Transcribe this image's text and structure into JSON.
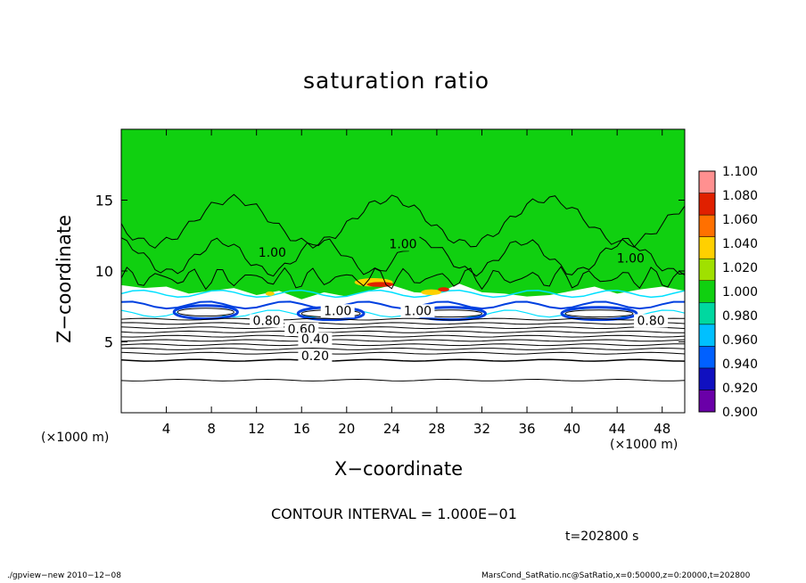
{
  "header": {
    "title": "saturation ratio"
  },
  "axes": {
    "xlabel": "X−coordinate",
    "ylabel": "Z−coordinate",
    "x_unit_left": "(×1000 m)",
    "x_unit_right": "(×1000 m)"
  },
  "info": {
    "contour_interval": "CONTOUR INTERVAL = 1.000E−01",
    "time": "t=202800 s"
  },
  "footer": {
    "left": "./gpview−new   2010−12−08",
    "right": "MarsCond_SatRatio.nc@SatRatio,x=0:50000,z=0:20000,t=202800"
  },
  "colors": {
    "saturated_fill": "#10d010",
    "supersat_low": "#ffd000",
    "supersat_high": "#e02000",
    "subsat_blue": "#0040e0",
    "cyan": "#00e0ff",
    "contour": "#000000"
  },
  "chart_data": {
    "type": "heatmap",
    "title": "saturation ratio",
    "xlabel": "X−coordinate",
    "ylabel": "Z−coordinate",
    "x_unit": "(×1000 m)",
    "xlim": [
      0,
      50
    ],
    "ylim": [
      0,
      20
    ],
    "x_ticks": [
      4,
      8,
      12,
      16,
      20,
      24,
      28,
      32,
      36,
      40,
      44,
      48
    ],
    "y_ticks": [
      5,
      10,
      15
    ],
    "colorbar": {
      "levels": [
        "0.900",
        "0.920",
        "0.940",
        "0.960",
        "0.980",
        "1.000",
        "1.020",
        "1.040",
        "1.060",
        "1.080",
        "1.100"
      ],
      "colors": [
        "#6a00a8",
        "#1010c0",
        "#0060ff",
        "#00c0ff",
        "#00d8a0",
        "#10d010",
        "#a0e000",
        "#ffd000",
        "#ff7000",
        "#e02000",
        "#ff9090"
      ]
    },
    "contour_labels": [
      {
        "text": "1.00",
        "x": 13.4,
        "z": 11.0
      },
      {
        "text": "1.00",
        "x": 25.0,
        "z": 11.6
      },
      {
        "text": "1.00",
        "x": 45.2,
        "z": 10.6
      },
      {
        "text": "1.00",
        "x": 19.2,
        "z": 6.9
      },
      {
        "text": "1.00",
        "x": 26.3,
        "z": 6.9
      },
      {
        "text": "0.80",
        "x": 12.9,
        "z": 6.2
      },
      {
        "text": "0.80",
        "x": 47.0,
        "z": 6.2
      },
      {
        "text": "0.60",
        "x": 16.0,
        "z": 5.6
      },
      {
        "text": "0.40",
        "x": 17.2,
        "z": 4.9
      },
      {
        "text": "0.20",
        "x": 17.2,
        "z": 3.7
      }
    ],
    "contour_interval": 0.1,
    "time": "t=202800 s"
  }
}
